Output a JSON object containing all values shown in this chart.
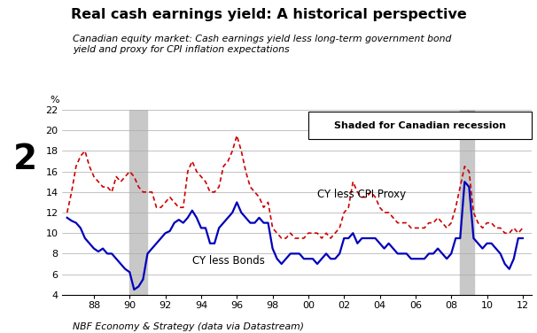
{
  "title": "Real cash earnings yield: A historical perspective",
  "subtitle": "Canadian equity market: Cash earnings yield less long-term government bond\nyield and proxy for CPI inflation expectations",
  "footnote": "NBF Economy & Strategy (data via Datastream)",
  "ylabel": "%",
  "ylim": [
    4,
    22
  ],
  "yticks": [
    4,
    6,
    8,
    10,
    12,
    14,
    16,
    18,
    20,
    22
  ],
  "xtick_positions": [
    1988,
    1990,
    1992,
    1994,
    1996,
    1998,
    2000,
    2002,
    2004,
    2006,
    2008,
    2010,
    2012
  ],
  "xtick_labels": [
    "88",
    "90",
    "92",
    "94",
    "96",
    "98",
    "00",
    "02",
    "04",
    "06",
    "08",
    "10",
    "12"
  ],
  "recession_shading": [
    {
      "xstart": 1990.0,
      "xend": 1991.0
    },
    {
      "xstart": 2008.5,
      "xend": 2009.3
    }
  ],
  "label_cy_bonds": "CY less Bonds",
  "label_cy_cpi": "CY less CPI Proxy",
  "legend_box_text": "Shaded for Canadian recession",
  "panel_label": "2",
  "background_color": "#ffffff",
  "recession_color": "#c8c8c8",
  "line_blue_color": "#0000bb",
  "line_red_color": "#cc0000",
  "cy_bonds": {
    "x": [
      1986.5,
      1986.75,
      1987.0,
      1987.25,
      1987.5,
      1987.75,
      1988.0,
      1988.25,
      1988.5,
      1988.75,
      1989.0,
      1989.25,
      1989.5,
      1989.75,
      1990.0,
      1990.25,
      1990.5,
      1990.75,
      1991.0,
      1991.25,
      1991.5,
      1991.75,
      1992.0,
      1992.25,
      1992.5,
      1992.75,
      1993.0,
      1993.25,
      1993.5,
      1993.75,
      1994.0,
      1994.25,
      1994.5,
      1994.75,
      1995.0,
      1995.25,
      1995.5,
      1995.75,
      1996.0,
      1996.25,
      1996.5,
      1996.75,
      1997.0,
      1997.25,
      1997.5,
      1997.75,
      1998.0,
      1998.25,
      1998.5,
      1998.75,
      1999.0,
      1999.25,
      1999.5,
      1999.75,
      2000.0,
      2000.25,
      2000.5,
      2000.75,
      2001.0,
      2001.25,
      2001.5,
      2001.75,
      2002.0,
      2002.25,
      2002.5,
      2002.75,
      2003.0,
      2003.25,
      2003.5,
      2003.75,
      2004.0,
      2004.25,
      2004.5,
      2004.75,
      2005.0,
      2005.25,
      2005.5,
      2005.75,
      2006.0,
      2006.25,
      2006.5,
      2006.75,
      2007.0,
      2007.25,
      2007.5,
      2007.75,
      2008.0,
      2008.25,
      2008.5,
      2008.75,
      2009.0,
      2009.25,
      2009.5,
      2009.75,
      2010.0,
      2010.25,
      2010.5,
      2010.75,
      2011.0,
      2011.25,
      2011.5,
      2011.75,
      2012.0
    ],
    "y": [
      11.5,
      11.2,
      11.0,
      10.5,
      9.5,
      9.0,
      8.5,
      8.2,
      8.5,
      8.0,
      8.0,
      7.5,
      7.0,
      6.5,
      6.2,
      4.5,
      4.8,
      5.5,
      8.0,
      8.5,
      9.0,
      9.5,
      10.0,
      10.2,
      11.0,
      11.3,
      11.0,
      11.5,
      12.2,
      11.5,
      10.5,
      10.5,
      9.0,
      9.0,
      10.5,
      11.0,
      11.5,
      12.0,
      13.0,
      12.0,
      11.5,
      11.0,
      11.0,
      11.5,
      11.0,
      11.0,
      8.5,
      7.5,
      7.0,
      7.5,
      8.0,
      8.0,
      8.0,
      7.5,
      7.5,
      7.5,
      7.0,
      7.5,
      8.0,
      7.5,
      7.5,
      8.0,
      9.5,
      9.5,
      10.0,
      9.0,
      9.5,
      9.5,
      9.5,
      9.5,
      9.0,
      8.5,
      9.0,
      8.5,
      8.0,
      8.0,
      8.0,
      7.5,
      7.5,
      7.5,
      7.5,
      8.0,
      8.0,
      8.5,
      8.0,
      7.5,
      8.0,
      9.5,
      9.5,
      15.0,
      14.5,
      9.5,
      9.0,
      8.5,
      9.0,
      9.0,
      8.5,
      8.0,
      7.0,
      6.5,
      7.5,
      9.5,
      9.5
    ]
  },
  "cy_cpi": {
    "x": [
      1986.5,
      1986.75,
      1987.0,
      1987.25,
      1987.5,
      1987.75,
      1988.0,
      1988.25,
      1988.5,
      1988.75,
      1989.0,
      1989.25,
      1989.5,
      1989.75,
      1990.0,
      1990.25,
      1990.5,
      1990.75,
      1991.0,
      1991.25,
      1991.5,
      1991.75,
      1992.0,
      1992.25,
      1992.5,
      1992.75,
      1993.0,
      1993.25,
      1993.5,
      1993.75,
      1994.0,
      1994.25,
      1994.5,
      1994.75,
      1995.0,
      1995.25,
      1995.5,
      1995.75,
      1996.0,
      1996.25,
      1996.5,
      1996.75,
      1997.0,
      1997.25,
      1997.5,
      1997.75,
      1998.0,
      1998.25,
      1998.5,
      1998.75,
      1999.0,
      1999.25,
      1999.5,
      1999.75,
      2000.0,
      2000.25,
      2000.5,
      2000.75,
      2001.0,
      2001.25,
      2001.5,
      2001.75,
      2002.0,
      2002.25,
      2002.5,
      2002.75,
      2003.0,
      2003.25,
      2003.5,
      2003.75,
      2004.0,
      2004.25,
      2004.5,
      2004.75,
      2005.0,
      2005.25,
      2005.5,
      2005.75,
      2006.0,
      2006.25,
      2006.5,
      2006.75,
      2007.0,
      2007.25,
      2007.5,
      2007.75,
      2008.0,
      2008.25,
      2008.5,
      2008.75,
      2009.0,
      2009.25,
      2009.5,
      2009.75,
      2010.0,
      2010.25,
      2010.5,
      2010.75,
      2011.0,
      2011.25,
      2011.5,
      2011.75,
      2012.0
    ],
    "y": [
      12.0,
      14.0,
      16.5,
      17.5,
      18.0,
      16.5,
      15.5,
      15.0,
      14.5,
      14.5,
      14.0,
      15.5,
      15.0,
      15.5,
      16.0,
      15.5,
      14.5,
      14.0,
      14.0,
      14.0,
      12.5,
      12.5,
      13.0,
      13.5,
      13.0,
      12.5,
      12.5,
      16.0,
      17.0,
      16.0,
      15.5,
      15.0,
      14.0,
      14.0,
      14.5,
      16.5,
      17.0,
      18.0,
      19.5,
      18.0,
      16.0,
      14.5,
      14.0,
      13.5,
      12.5,
      13.0,
      10.5,
      10.0,
      9.5,
      9.5,
      10.0,
      9.5,
      9.5,
      9.5,
      10.0,
      10.0,
      10.0,
      9.5,
      10.0,
      9.5,
      10.0,
      10.5,
      12.0,
      12.5,
      15.0,
      14.0,
      13.5,
      13.5,
      14.0,
      13.5,
      12.5,
      12.0,
      12.0,
      11.5,
      11.0,
      11.0,
      11.0,
      10.5,
      10.5,
      10.5,
      10.5,
      11.0,
      11.0,
      11.5,
      11.0,
      10.5,
      11.0,
      12.5,
      14.5,
      16.5,
      16.0,
      12.0,
      11.0,
      10.5,
      11.0,
      11.0,
      10.5,
      10.5,
      10.0,
      10.0,
      10.5,
      10.0,
      10.5
    ]
  }
}
